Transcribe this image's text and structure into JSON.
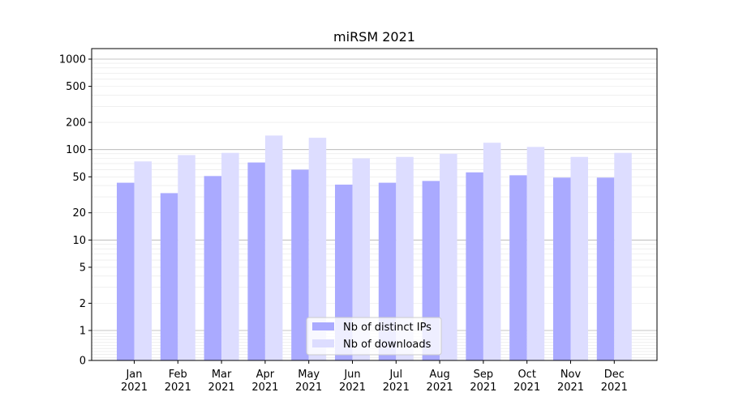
{
  "chart_data": {
    "type": "bar",
    "title": "miRSM 2021",
    "xlabel": "",
    "ylabel": "",
    "yscale": "symlog",
    "ylim": [
      0,
      1200
    ],
    "yticks": [
      0,
      1,
      2,
      5,
      10,
      20,
      50,
      100,
      200,
      500,
      1000
    ],
    "categories": [
      "Jan\n2021",
      "Feb\n2021",
      "Mar\n2021",
      "Apr\n2021",
      "May\n2021",
      "Jun\n2021",
      "Jul\n2021",
      "Aug\n2021",
      "Sep\n2021",
      "Oct\n2021",
      "Nov\n2021",
      "Dec\n2021"
    ],
    "category_labels": [
      [
        "Jan",
        "2021"
      ],
      [
        "Feb",
        "2021"
      ],
      [
        "Mar",
        "2021"
      ],
      [
        "Apr",
        "2021"
      ],
      [
        "May",
        "2021"
      ],
      [
        "Jun",
        "2021"
      ],
      [
        "Jul",
        "2021"
      ],
      [
        "Aug",
        "2021"
      ],
      [
        "Sep",
        "2021"
      ],
      [
        "Oct",
        "2021"
      ],
      [
        "Nov",
        "2021"
      ],
      [
        "Dec",
        "2021"
      ]
    ],
    "series": [
      {
        "name": "Nb of distinct IPs",
        "color": "#aaaaff",
        "values": [
          43,
          33,
          51,
          72,
          60,
          41,
          43,
          45,
          56,
          52,
          49,
          49
        ]
      },
      {
        "name": "Nb of downloads",
        "color": "#ddddff",
        "values": [
          74,
          87,
          92,
          143,
          135,
          80,
          83,
          90,
          119,
          107,
          83,
          92
        ]
      }
    ],
    "grid": true,
    "legend_position": "lower-center"
  }
}
